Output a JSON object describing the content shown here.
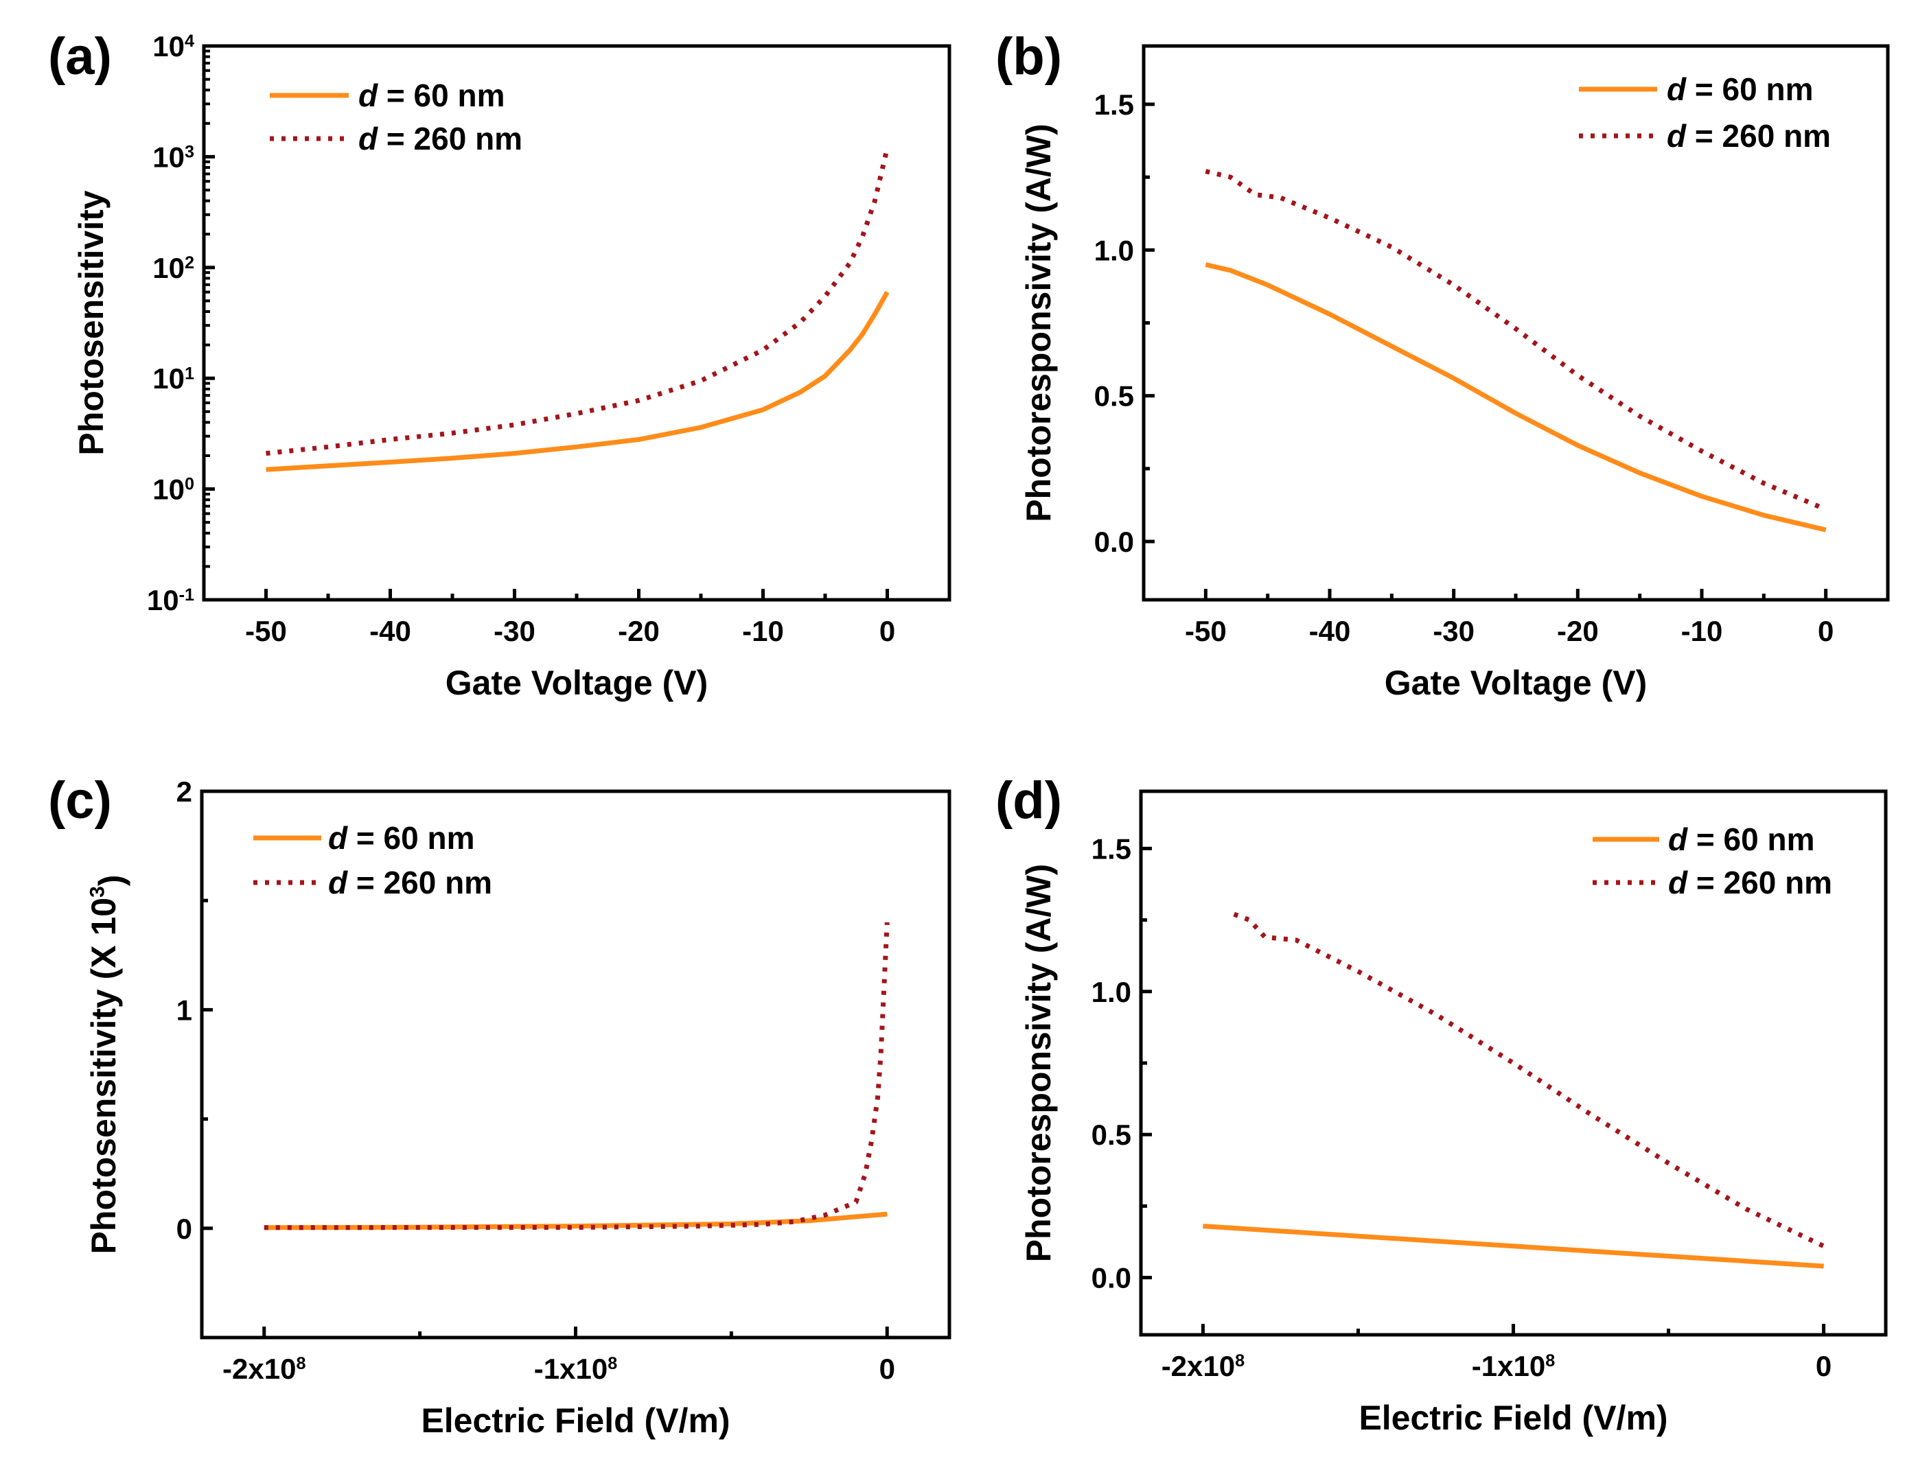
{
  "colors": {
    "d60": "#ff8c1a",
    "d260": "#a3151b",
    "axis": "#000000"
  },
  "chart_data": [
    {
      "panel_label": "(a)",
      "type": "line",
      "yscale": "log",
      "xlabel": "Gate Voltage (V)",
      "ylabel": "Photosensitivity",
      "xlim": [
        -55,
        5
      ],
      "ylim": [
        0.1,
        10000
      ],
      "xticks": [
        -50,
        -40,
        -30,
        -20,
        -10,
        0
      ],
      "xtick_labels": [
        "-50",
        "-40",
        "-30",
        "-20",
        "-10",
        "0"
      ],
      "xminor": [
        -45,
        -35,
        -25,
        -15,
        -5
      ],
      "yticks": [
        0.1,
        1,
        10,
        100,
        1000,
        10000
      ],
      "ytick_labels": [
        "10^-1",
        "10^0",
        "10^1",
        "10^2",
        "10^3",
        "10^4"
      ],
      "legend": "top-left",
      "series": [
        {
          "name": "d = 60 nm",
          "style": "solid",
          "points": [
            [
              -50,
              1.5
            ],
            [
              -45,
              1.62
            ],
            [
              -40,
              1.75
            ],
            [
              -35,
              1.9
            ],
            [
              -30,
              2.1
            ],
            [
              -25,
              2.4
            ],
            [
              -20,
              2.8
            ],
            [
              -15,
              3.6
            ],
            [
              -10,
              5.2
            ],
            [
              -7,
              7.5
            ],
            [
              -5,
              10.5
            ],
            [
              -3,
              18
            ],
            [
              -2,
              25
            ],
            [
              -1,
              38
            ],
            [
              0,
              60
            ]
          ]
        },
        {
          "name": "d = 260 nm",
          "style": "dotted",
          "points": [
            [
              -50,
              2.1
            ],
            [
              -45,
              2.4
            ],
            [
              -40,
              2.8
            ],
            [
              -35,
              3.2
            ],
            [
              -30,
              3.8
            ],
            [
              -25,
              4.8
            ],
            [
              -20,
              6.3
            ],
            [
              -15,
              9.5
            ],
            [
              -10,
              18
            ],
            [
              -7,
              32
            ],
            [
              -5,
              55
            ],
            [
              -3,
              110
            ],
            [
              -2,
              190
            ],
            [
              -1,
              400
            ],
            [
              0,
              1200
            ]
          ]
        }
      ]
    },
    {
      "panel_label": "(b)",
      "type": "line",
      "yscale": "linear",
      "xlabel": "Gate Voltage (V)",
      "ylabel": "Photoresponsivity (A/W)",
      "xlim": [
        -55,
        5
      ],
      "ylim": [
        -0.2,
        1.7
      ],
      "xticks": [
        -50,
        -40,
        -30,
        -20,
        -10,
        0
      ],
      "xtick_labels": [
        "-50",
        "-40",
        "-30",
        "-20",
        "-10",
        "0"
      ],
      "xminor": [
        -45,
        -35,
        -25,
        -15,
        -5
      ],
      "yticks": [
        0,
        0.5,
        1,
        1.5
      ],
      "ytick_labels": [
        "0.0",
        "0.5",
        "1.0",
        "1.5"
      ],
      "yminor": [
        0.25,
        0.75,
        1.25
      ],
      "legend": "top-right",
      "series": [
        {
          "name": "d = 60 nm",
          "style": "solid",
          "points": [
            [
              -50,
              0.95
            ],
            [
              -48,
              0.93
            ],
            [
              -45,
              0.88
            ],
            [
              -40,
              0.78
            ],
            [
              -35,
              0.67
            ],
            [
              -30,
              0.56
            ],
            [
              -25,
              0.44
            ],
            [
              -20,
              0.33
            ],
            [
              -15,
              0.235
            ],
            [
              -10,
              0.155
            ],
            [
              -5,
              0.09
            ],
            [
              0,
              0.04
            ]
          ]
        },
        {
          "name": "d = 260 nm",
          "style": "dotted",
          "points": [
            [
              -50,
              1.27
            ],
            [
              -48,
              1.25
            ],
            [
              -46,
              1.19
            ],
            [
              -44,
              1.18
            ],
            [
              -40,
              1.11
            ],
            [
              -35,
              1.01
            ],
            [
              -30,
              0.88
            ],
            [
              -25,
              0.73
            ],
            [
              -20,
              0.57
            ],
            [
              -15,
              0.43
            ],
            [
              -10,
              0.31
            ],
            [
              -5,
              0.2
            ],
            [
              0,
              0.11
            ]
          ]
        }
      ]
    },
    {
      "panel_label": "(c)",
      "type": "line",
      "yscale": "linear",
      "xlabel": "Electric Field (V/m)",
      "ylabel": "Photosensitivity (X 10^3)",
      "xlim": [
        -220000000,
        20000000
      ],
      "ylim": [
        -0.5,
        2
      ],
      "xticks": [
        -200000000,
        -100000000,
        0
      ],
      "xtick_labels": [
        "-2x10^8",
        "-1x10^8",
        "0"
      ],
      "xminor": [
        -150000000,
        -50000000
      ],
      "yticks": [
        0,
        1,
        2
      ],
      "ytick_labels": [
        "0",
        "1",
        "2"
      ],
      "yminor": [
        0.5,
        1.5
      ],
      "legend": "top-left",
      "series": [
        {
          "name": "d = 60 nm",
          "style": "solid",
          "points": [
            [
              -200000000,
              0.003
            ],
            [
              -150000000,
              0.005
            ],
            [
              -100000000,
              0.01
            ],
            [
              -50000000,
              0.02
            ],
            [
              -25000000,
              0.035
            ],
            [
              0,
              0.065
            ]
          ]
        },
        {
          "name": "d = 260 nm",
          "style": "dotted",
          "points": [
            [
              -200000000,
              0.003
            ],
            [
              -100000000,
              0.004
            ],
            [
              -60000000,
              0.01
            ],
            [
              -40000000,
              0.018
            ],
            [
              -30000000,
              0.03
            ],
            [
              -20000000,
              0.06
            ],
            [
              -10000000,
              0.12
            ],
            [
              -7000000,
              0.25
            ],
            [
              -5000000,
              0.4
            ],
            [
              -3000000,
              0.6
            ],
            [
              -2000000,
              0.8
            ],
            [
              -1000000,
              1.1
            ],
            [
              0,
              1.4
            ]
          ]
        }
      ]
    },
    {
      "panel_label": "(d)",
      "type": "line",
      "yscale": "linear",
      "xlabel": "Electric Field (V/m)",
      "ylabel": "Photoresponsivity (A/W)",
      "xlim": [
        -220000000,
        20000000
      ],
      "ylim": [
        -0.2,
        1.7
      ],
      "xticks": [
        -200000000,
        -100000000,
        0
      ],
      "xtick_labels": [
        "-2x10^8",
        "-1x10^8",
        "0"
      ],
      "xminor": [
        -150000000,
        -50000000
      ],
      "yticks": [
        0,
        0.5,
        1,
        1.5
      ],
      "ytick_labels": [
        "0.0",
        "0.5",
        "1.0",
        "1.5"
      ],
      "yminor": [
        0.25,
        0.75,
        1.25
      ],
      "legend": "top-right",
      "series": [
        {
          "name": "d = 60 nm",
          "style": "solid",
          "points": [
            [
              -200000000,
              0.18
            ],
            [
              -150000000,
              0.145
            ],
            [
              -100000000,
              0.11
            ],
            [
              -50000000,
              0.075
            ],
            [
              0,
              0.04
            ]
          ]
        },
        {
          "name": "d = 260 nm",
          "style": "dotted",
          "points": [
            [
              -190000000,
              1.27
            ],
            [
              -185000000,
              1.25
            ],
            [
              -180000000,
              1.19
            ],
            [
              -170000000,
              1.18
            ],
            [
              -150000000,
              1.07
            ],
            [
              -125000000,
              0.92
            ],
            [
              -100000000,
              0.75
            ],
            [
              -75000000,
              0.57
            ],
            [
              -50000000,
              0.4
            ],
            [
              -25000000,
              0.24
            ],
            [
              0,
              0.11
            ]
          ]
        }
      ]
    }
  ]
}
